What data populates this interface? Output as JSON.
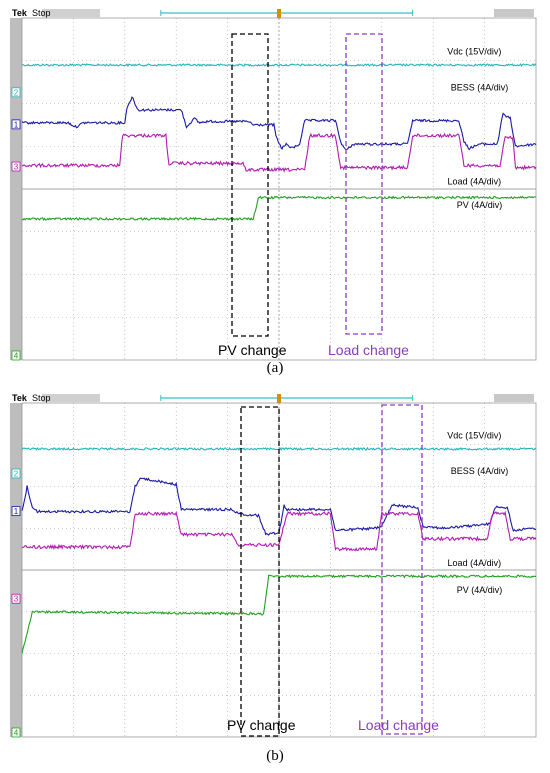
{
  "colors": {
    "vdc": "#22b7b7",
    "bess": "#1a1aa6",
    "load": "#b21ab2",
    "pv": "#20a020",
    "pv_box": "#000000",
    "load_box": "#8a3bc0",
    "marker_bar": "#38c0c0",
    "trigger": "#e08a00"
  },
  "panels": [
    {
      "status_brand": "Tek",
      "status_state": "Stop",
      "caption": "(a)",
      "annotations": {
        "pv_change": "PV change",
        "load_change": "Load change"
      },
      "channel_markers": [
        "2",
        "1",
        "3",
        "4"
      ],
      "chart_data": {
        "type": "line",
        "x_divisions": 10,
        "series": [
          {
            "name": "Vdc (15V/div)",
            "key": "vdc",
            "points": [
              [
                0,
                2.9
              ],
              [
                10,
                2.9
              ]
            ]
          },
          {
            "name": "BESS (4A/div)",
            "key": "bess",
            "points": [
              [
                0,
                1.55
              ],
              [
                0.9,
                1.55
              ],
              [
                1.05,
                1.45
              ],
              [
                1.2,
                1.55
              ],
              [
                2.0,
                1.55
              ],
              [
                2.05,
                1.95
              ],
              [
                2.15,
                2.15
              ],
              [
                2.25,
                1.85
              ],
              [
                3.1,
                1.85
              ],
              [
                3.2,
                1.45
              ],
              [
                3.35,
                1.65
              ],
              [
                3.45,
                1.55
              ],
              [
                3.6,
                1.58
              ],
              [
                4.4,
                1.58
              ],
              [
                4.5,
                1.5
              ],
              [
                4.9,
                1.5
              ],
              [
                4.95,
                1.2
              ],
              [
                5.05,
                0.95
              ],
              [
                5.15,
                1.05
              ],
              [
                5.25,
                0.95
              ],
              [
                5.4,
                1.05
              ],
              [
                5.5,
                1.6
              ],
              [
                6.1,
                1.6
              ],
              [
                6.2,
                1.1
              ],
              [
                6.3,
                0.9
              ],
              [
                6.45,
                1.05
              ],
              [
                7.5,
                1.05
              ],
              [
                7.6,
                1.6
              ],
              [
                8.5,
                1.6
              ],
              [
                8.6,
                1.1
              ],
              [
                8.7,
                0.95
              ],
              [
                8.9,
                1.05
              ],
              [
                9.25,
                1.05
              ],
              [
                9.35,
                1.75
              ],
              [
                9.5,
                1.65
              ],
              [
                9.6,
                1.0
              ],
              [
                10,
                1.05
              ]
            ]
          },
          {
            "name": "Load (4A/div)",
            "key": "load",
            "points": [
              [
                0,
                0.55
              ],
              [
                1.9,
                0.55
              ],
              [
                1.95,
                1.25
              ],
              [
                2.8,
                1.25
              ],
              [
                2.85,
                0.6
              ],
              [
                4.3,
                0.6
              ],
              [
                4.35,
                0.45
              ],
              [
                5.5,
                0.45
              ],
              [
                5.6,
                1.25
              ],
              [
                6.1,
                1.25
              ],
              [
                6.2,
                0.5
              ],
              [
                7.5,
                0.5
              ],
              [
                7.6,
                1.25
              ],
              [
                8.5,
                1.25
              ],
              [
                8.6,
                0.55
              ],
              [
                9.3,
                0.55
              ],
              [
                9.4,
                1.2
              ],
              [
                9.55,
                1.2
              ],
              [
                9.6,
                0.5
              ],
              [
                10,
                0.5
              ]
            ]
          },
          {
            "name": "PV (4A/div)",
            "key": "pv",
            "points": [
              [
                0,
                -0.7
              ],
              [
                4.5,
                -0.7
              ],
              [
                4.6,
                -0.2
              ],
              [
                10,
                -0.2
              ]
            ]
          }
        ]
      }
    },
    {
      "status_brand": "Tek",
      "status_state": "Stop",
      "caption": "(b)",
      "annotations": {
        "pv_change": "PV change",
        "load_change": "Load change"
      },
      "channel_markers": [
        "2",
        "1",
        "3",
        "4"
      ],
      "chart_data": {
        "type": "line",
        "x_divisions": 10,
        "series": [
          {
            "name": "Vdc (15V/div)",
            "key": "vdc",
            "points": [
              [
                0,
                2.9
              ],
              [
                10,
                2.9
              ]
            ]
          },
          {
            "name": "BESS (4A/div)",
            "key": "bess",
            "points": [
              [
                0,
                1.4
              ],
              [
                0.1,
                2.0
              ],
              [
                0.2,
                1.5
              ],
              [
                0.3,
                1.4
              ],
              [
                2.1,
                1.4
              ],
              [
                2.2,
                2.0
              ],
              [
                2.3,
                2.2
              ],
              [
                3.0,
                2.05
              ],
              [
                3.1,
                1.45
              ],
              [
                4.1,
                1.45
              ],
              [
                4.2,
                1.35
              ],
              [
                4.6,
                1.3
              ],
              [
                4.75,
                0.85
              ],
              [
                5.0,
                0.9
              ],
              [
                5.1,
                1.55
              ],
              [
                5.15,
                1.45
              ],
              [
                6.0,
                1.45
              ],
              [
                6.1,
                0.95
              ],
              [
                6.9,
                1.0
              ],
              [
                7.0,
                1.05
              ],
              [
                7.2,
                1.55
              ],
              [
                7.7,
                1.5
              ],
              [
                7.8,
                1.05
              ],
              [
                8.2,
                1.0
              ],
              [
                9.1,
                1.1
              ],
              [
                9.2,
                1.5
              ],
              [
                9.45,
                1.5
              ],
              [
                9.55,
                0.95
              ],
              [
                10,
                1.0
              ]
            ]
          },
          {
            "name": "Load (4A/div)",
            "key": "load",
            "points": [
              [
                0,
                0.55
              ],
              [
                2.1,
                0.55
              ],
              [
                2.2,
                1.35
              ],
              [
                3.0,
                1.35
              ],
              [
                3.1,
                0.85
              ],
              [
                4.1,
                0.85
              ],
              [
                4.2,
                0.6
              ],
              [
                5.0,
                0.6
              ],
              [
                5.15,
                1.35
              ],
              [
                6.0,
                1.35
              ],
              [
                6.1,
                0.5
              ],
              [
                6.9,
                0.5
              ],
              [
                7.0,
                1.35
              ],
              [
                7.7,
                1.35
              ],
              [
                7.8,
                0.75
              ],
              [
                9.05,
                0.75
              ],
              [
                9.15,
                1.35
              ],
              [
                9.4,
                1.35
              ],
              [
                9.5,
                0.75
              ],
              [
                10,
                0.75
              ]
            ]
          },
          {
            "name": "PV (4A/div)",
            "key": "pv",
            "points": [
              [
                0,
                -2.0
              ],
              [
                0.1,
                -1.5
              ],
              [
                0.2,
                -1.0
              ],
              [
                4.7,
                -1.05
              ],
              [
                4.8,
                -0.15
              ],
              [
                10,
                -0.15
              ]
            ]
          }
        ]
      }
    }
  ]
}
